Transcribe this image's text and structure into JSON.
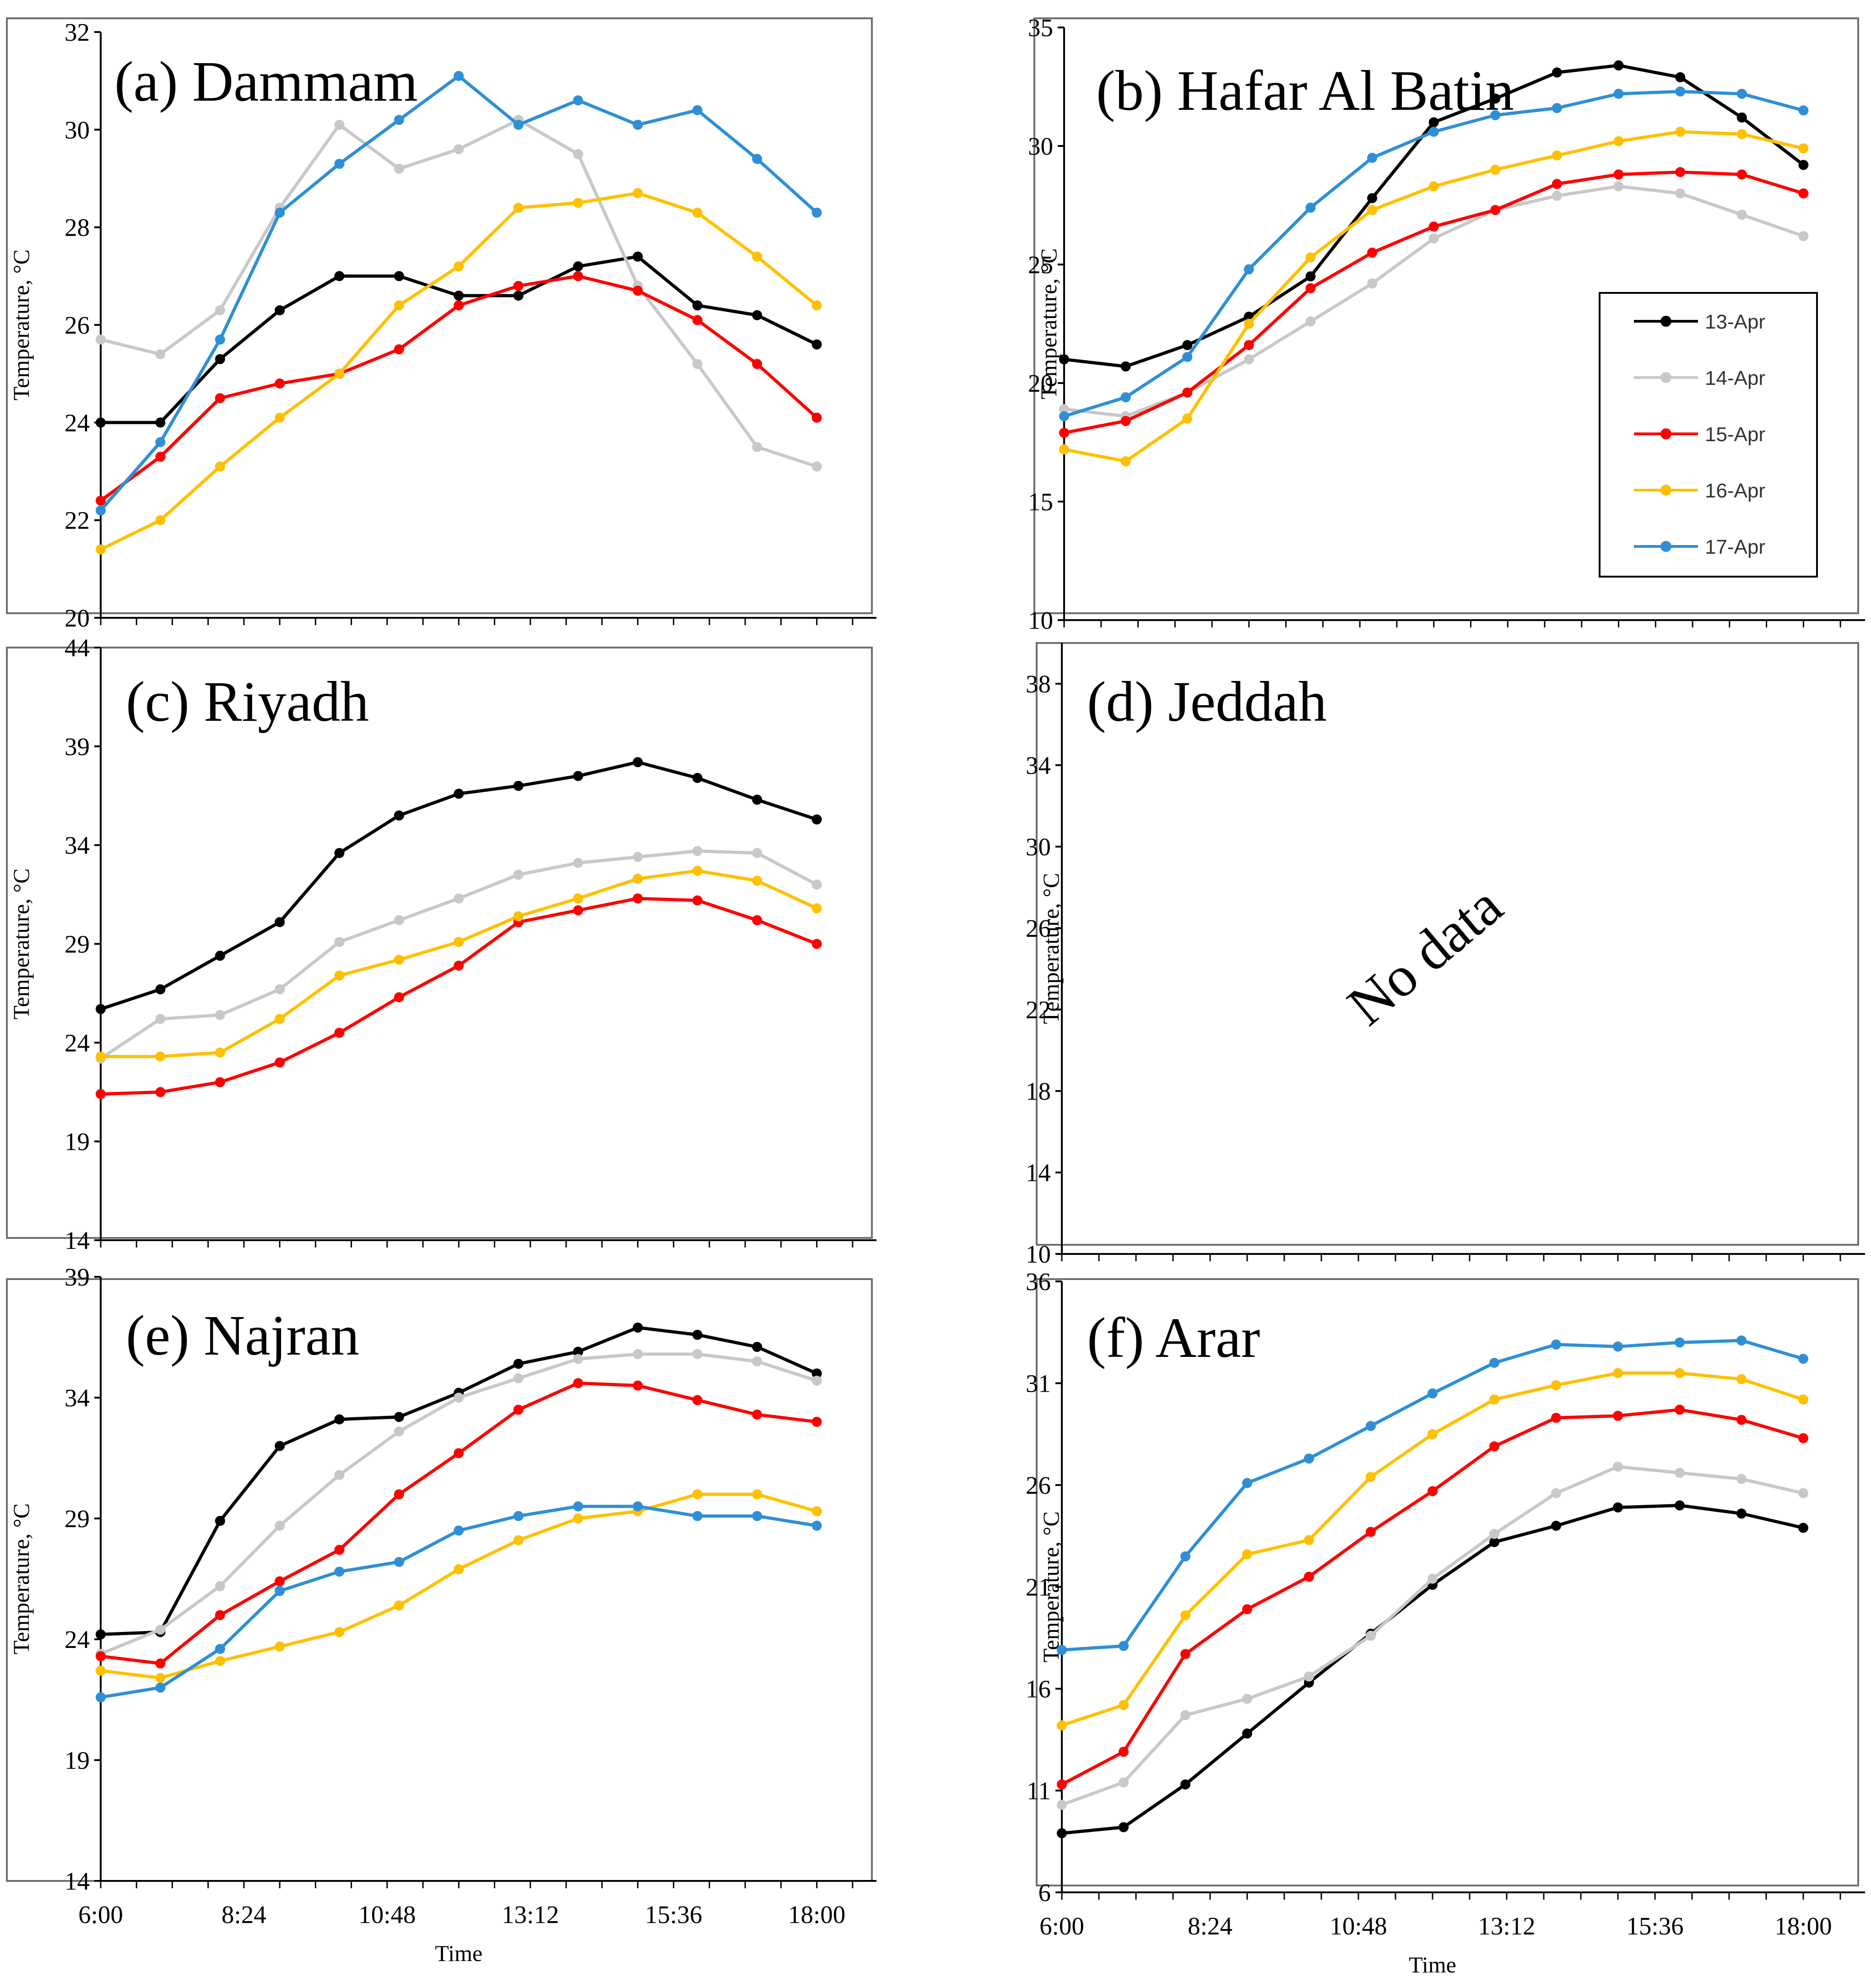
{
  "figure": {
    "legend": {
      "entries": [
        {
          "label": "13-Apr",
          "color": "#000000"
        },
        {
          "label": "14-Apr",
          "color": "#c8c8c8"
        },
        {
          "label": "15-Apr",
          "color": "#ff0000"
        },
        {
          "label": "16-Apr",
          "color": "#ffc000"
        },
        {
          "label": "17-Apr",
          "color": "#2e8fd6"
        }
      ]
    }
  },
  "chart_data": [
    {
      "id": "a",
      "type": "line",
      "title": "(a) Dammam",
      "xlabel": "",
      "ylabel": "Temperature, °C",
      "x": [
        6,
        7,
        8,
        9,
        10,
        11,
        12,
        13,
        14,
        15,
        16,
        17,
        18
      ],
      "ylim": [
        20,
        32
      ],
      "yticks": [
        20,
        22,
        24,
        26,
        28,
        30,
        32
      ],
      "xticks": [],
      "series": [
        {
          "name": "13-Apr",
          "color": "#000000",
          "values": [
            24.0,
            24.0,
            25.3,
            26.3,
            27.0,
            27.0,
            26.6,
            26.6,
            27.2,
            27.4,
            26.4,
            26.2,
            25.6
          ]
        },
        {
          "name": "14-Apr",
          "color": "#c8c8c8",
          "values": [
            25.7,
            25.4,
            26.3,
            28.4,
            30.1,
            29.2,
            29.6,
            30.2,
            29.5,
            26.8,
            25.2,
            23.5,
            23.1
          ]
        },
        {
          "name": "15-Apr",
          "color": "#ff0000",
          "values": [
            22.4,
            23.3,
            24.5,
            24.8,
            25.0,
            25.5,
            26.4,
            26.8,
            27.0,
            26.7,
            26.1,
            25.2,
            24.1
          ]
        },
        {
          "name": "16-Apr",
          "color": "#ffc000",
          "values": [
            21.4,
            22.0,
            23.1,
            24.1,
            25.0,
            26.4,
            27.2,
            28.4,
            28.5,
            28.7,
            28.3,
            27.4,
            26.4
          ]
        },
        {
          "name": "17-Apr",
          "color": "#2e8fd6",
          "values": [
            22.2,
            23.6,
            25.7,
            28.3,
            29.3,
            30.2,
            31.1,
            30.1,
            30.6,
            30.1,
            30.4,
            29.4,
            28.3
          ]
        }
      ]
    },
    {
      "id": "b",
      "type": "line",
      "title": "(b) Hafar Al Batin",
      "xlabel": "",
      "ylabel": "Temperature, °C",
      "x": [
        6,
        7,
        8,
        9,
        10,
        11,
        12,
        13,
        14,
        15,
        16,
        17,
        18
      ],
      "ylim": [
        10,
        35
      ],
      "yticks": [
        10,
        15,
        20,
        25,
        30,
        35
      ],
      "xticks": [],
      "series": [
        {
          "name": "13-Apr",
          "color": "#000000",
          "values": [
            21.0,
            20.7,
            21.6,
            22.8,
            24.5,
            27.8,
            31.0,
            32.0,
            33.1,
            33.4,
            32.9,
            31.2,
            29.2
          ]
        },
        {
          "name": "14-Apr",
          "color": "#c8c8c8",
          "values": [
            18.9,
            18.6,
            19.6,
            21.0,
            22.6,
            24.2,
            26.1,
            27.3,
            27.9,
            28.3,
            28.0,
            27.1,
            26.2
          ]
        },
        {
          "name": "15-Apr",
          "color": "#ff0000",
          "values": [
            17.9,
            18.4,
            19.6,
            21.6,
            24.0,
            25.5,
            26.6,
            27.3,
            28.4,
            28.8,
            28.9,
            28.8,
            28.0
          ]
        },
        {
          "name": "16-Apr",
          "color": "#ffc000",
          "values": [
            17.2,
            16.7,
            18.5,
            22.5,
            25.3,
            27.3,
            28.3,
            29.0,
            29.6,
            30.2,
            30.6,
            30.5,
            29.9
          ]
        },
        {
          "name": "17-Apr",
          "color": "#2e8fd6",
          "values": [
            18.6,
            19.4,
            21.1,
            24.8,
            27.4,
            29.5,
            30.6,
            31.3,
            31.6,
            32.2,
            32.3,
            32.2,
            31.5
          ]
        }
      ]
    },
    {
      "id": "c",
      "type": "line",
      "title": "(c) Riyadh",
      "xlabel": "",
      "ylabel": "Temperature, °C",
      "x": [
        6,
        7,
        8,
        9,
        10,
        11,
        12,
        13,
        14,
        15,
        16,
        17,
        18
      ],
      "ylim": [
        14,
        44
      ],
      "yticks": [
        14,
        19,
        24,
        29,
        34,
        39,
        44
      ],
      "xticks": [],
      "series": [
        {
          "name": "13-Apr",
          "color": "#000000",
          "values": [
            25.7,
            26.7,
            28.4,
            30.1,
            33.6,
            35.5,
            36.6,
            37.0,
            37.5,
            38.2,
            37.4,
            36.3,
            35.3
          ]
        },
        {
          "name": "14-Apr",
          "color": "#c8c8c8",
          "values": [
            23.2,
            25.2,
            25.4,
            26.7,
            29.1,
            30.2,
            31.3,
            32.5,
            33.1,
            33.4,
            33.7,
            33.6,
            32.0
          ]
        },
        {
          "name": "15-Apr",
          "color": "#ff0000",
          "values": [
            21.4,
            21.5,
            22.0,
            23.0,
            24.5,
            26.3,
            27.9,
            30.1,
            30.7,
            31.3,
            31.2,
            30.2,
            29.0
          ]
        },
        {
          "name": "16-Apr",
          "color": "#ffc000",
          "values": [
            23.3,
            23.3,
            23.5,
            25.2,
            27.4,
            28.2,
            29.1,
            30.4,
            31.3,
            32.3,
            32.7,
            32.2,
            30.8
          ]
        }
      ]
    },
    {
      "id": "d",
      "type": "line",
      "title": "(d) Jeddah",
      "annotation": "No data",
      "xlabel": "",
      "ylabel": "Temperature, °C",
      "x": [],
      "ylim": [
        10,
        40
      ],
      "yticks": [
        10,
        14,
        18,
        22,
        26,
        30,
        34,
        38
      ],
      "xticks": [],
      "series": []
    },
    {
      "id": "e",
      "type": "line",
      "title": "(e) Najran",
      "xlabel": "Time",
      "ylabel": "Temperature, °C",
      "x": [
        6,
        7,
        8,
        9,
        10,
        11,
        12,
        13,
        14,
        15,
        16,
        17,
        18
      ],
      "ylim": [
        14,
        39
      ],
      "yticks": [
        14,
        19,
        24,
        29,
        34,
        39
      ],
      "xticks": [
        {
          "value": 6,
          "label": "6:00"
        },
        {
          "value": 8.4,
          "label": "8:24"
        },
        {
          "value": 10.8,
          "label": "10:48"
        },
        {
          "value": 13.2,
          "label": "13:12"
        },
        {
          "value": 15.6,
          "label": "15:36"
        },
        {
          "value": 18,
          "label": "18:00"
        }
      ],
      "series": [
        {
          "name": "13-Apr",
          "color": "#000000",
          "values": [
            24.2,
            24.3,
            28.9,
            32.0,
            33.1,
            33.2,
            34.2,
            35.4,
            35.9,
            36.9,
            36.6,
            36.1,
            35.0
          ]
        },
        {
          "name": "14-Apr",
          "color": "#c8c8c8",
          "values": [
            23.4,
            24.4,
            26.2,
            28.7,
            30.8,
            32.6,
            34.0,
            34.8,
            35.6,
            35.8,
            35.8,
            35.5,
            34.7
          ]
        },
        {
          "name": "15-Apr",
          "color": "#ff0000",
          "values": [
            23.3,
            23.0,
            25.0,
            26.4,
            27.7,
            30.0,
            31.7,
            33.5,
            34.6,
            34.5,
            33.9,
            33.3,
            33.0
          ]
        },
        {
          "name": "16-Apr",
          "color": "#ffc000",
          "values": [
            22.7,
            22.4,
            23.1,
            23.7,
            24.3,
            25.4,
            26.9,
            28.1,
            29.0,
            29.3,
            30.0,
            30.0,
            29.3
          ]
        },
        {
          "name": "17-Apr",
          "color": "#2e8fd6",
          "values": [
            21.6,
            22.0,
            23.6,
            26.0,
            26.8,
            27.2,
            28.5,
            29.1,
            29.5,
            29.5,
            29.1,
            29.1,
            28.7
          ]
        }
      ]
    },
    {
      "id": "f",
      "type": "line",
      "title": "(f) Arar",
      "xlabel": "Time",
      "ylabel": "Temperature, °C",
      "x": [
        6,
        7,
        8,
        9,
        10,
        11,
        12,
        13,
        14,
        15,
        16,
        17,
        18
      ],
      "ylim": [
        6,
        36
      ],
      "yticks": [
        6,
        11,
        16,
        21,
        26,
        31,
        36
      ],
      "xticks": [
        {
          "value": 6,
          "label": "6:00"
        },
        {
          "value": 8.4,
          "label": "8:24"
        },
        {
          "value": 10.8,
          "label": "10:48"
        },
        {
          "value": 13.2,
          "label": "13:12"
        },
        {
          "value": 15.6,
          "label": "15:36"
        },
        {
          "value": 18,
          "label": "18:00"
        }
      ],
      "series": [
        {
          "name": "13-Apr",
          "color": "#000000",
          "values": [
            8.9,
            9.2,
            11.3,
            13.8,
            16.3,
            18.7,
            21.1,
            23.2,
            24.0,
            24.9,
            25.0,
            24.6,
            23.9
          ]
        },
        {
          "name": "14-Apr",
          "color": "#c8c8c8",
          "values": [
            10.3,
            11.4,
            14.7,
            15.5,
            16.6,
            18.6,
            21.4,
            23.6,
            25.6,
            26.9,
            26.6,
            26.3,
            25.6
          ]
        },
        {
          "name": "15-Apr",
          "color": "#ff0000",
          "values": [
            11.3,
            12.9,
            17.7,
            19.9,
            21.5,
            23.7,
            25.7,
            27.9,
            29.3,
            29.4,
            29.7,
            29.2,
            28.3
          ]
        },
        {
          "name": "16-Apr",
          "color": "#ffc000",
          "values": [
            14.2,
            15.2,
            19.6,
            22.6,
            23.3,
            26.4,
            28.5,
            30.2,
            30.9,
            31.5,
            31.5,
            31.2,
            30.2
          ]
        },
        {
          "name": "17-Apr",
          "color": "#2e8fd6",
          "values": [
            17.9,
            18.1,
            22.5,
            26.1,
            27.3,
            28.9,
            30.5,
            32.0,
            32.9,
            32.8,
            33.0,
            33.1,
            32.2
          ]
        }
      ]
    }
  ]
}
